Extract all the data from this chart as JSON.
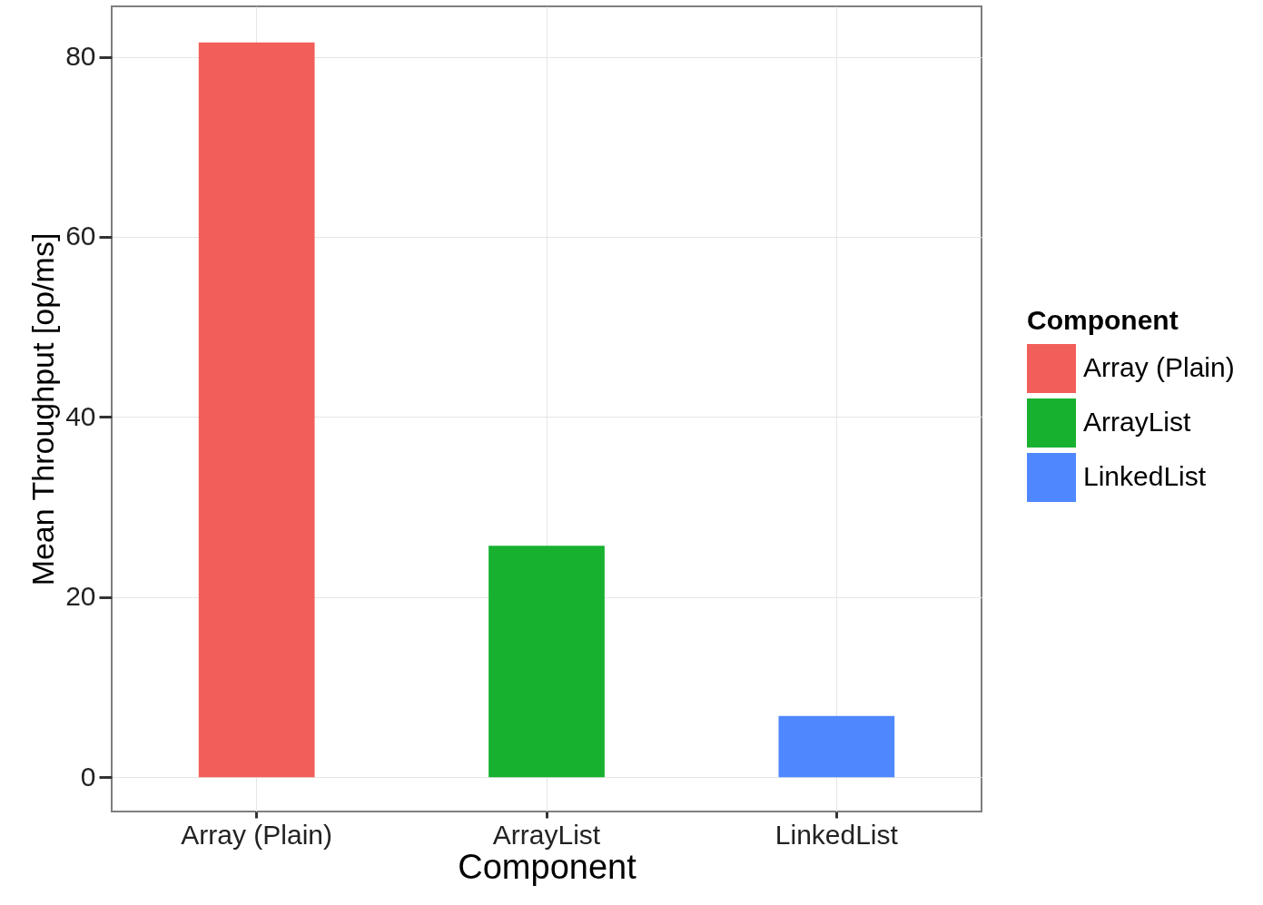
{
  "chart_data": {
    "type": "bar",
    "xlabel": "Component",
    "ylabel": "Mean Throughput [op/ms]",
    "legend_title": "Component",
    "categories": [
      "Array (Plain)",
      "ArrayList",
      "LinkedList"
    ],
    "series": [
      {
        "name": "Array (Plain)",
        "color": "#f25f5a",
        "values": [
          81.6,
          null,
          null
        ]
      },
      {
        "name": "ArrayList",
        "color": "#17b12f",
        "values": [
          null,
          25.7,
          null
        ]
      },
      {
        "name": "LinkedList",
        "color": "#4f88fe",
        "values": [
          null,
          null,
          6.8
        ]
      }
    ],
    "ylim": [
      -3.8,
      85.6
    ],
    "yticks": [
      0,
      20,
      40,
      60,
      80
    ],
    "grid": true,
    "legend": "right"
  }
}
